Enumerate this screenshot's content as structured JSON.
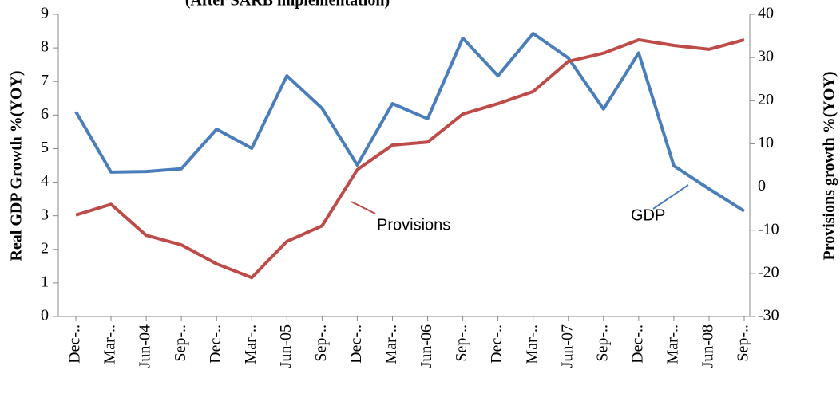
{
  "chart_data": {
    "type": "line",
    "title": "(After SARB implementation)",
    "y_label": "Real GDP Growth %(YOY)",
    "y2_label": "Provisions growth %(YOY)",
    "categories": [
      "Dec-..",
      "Mar-..",
      "Jun-04",
      "Sep-..",
      "Dec-..",
      "Mar-..",
      "Jun-05",
      "Sep-..",
      "Dec-..",
      "Mar-..",
      "Jun-06",
      "Sep-..",
      "Dec-..",
      "Mar-..",
      "Jun-07",
      "Sep-..",
      "Dec-..",
      "Mar-..",
      "Jun-08",
      "Sep-.."
    ],
    "series": [
      {
        "name": "GDP",
        "color": "#4a7ebb",
        "values": [
          6.1,
          4.3,
          4.32,
          4.4,
          5.58,
          5.01,
          7.17,
          6.2,
          4.51,
          6.34,
          5.89,
          8.29,
          7.17,
          8.43,
          7.7,
          6.18,
          7.85,
          4.49,
          3.8,
          3.14
        ]
      },
      {
        "name": "Provisions",
        "color": "#be4b48",
        "axis": "y2",
        "values": [
          -6.5,
          -4,
          -11.2,
          -13.4,
          -17.8,
          -21,
          -12.6,
          -9,
          4,
          9.7,
          10.4,
          16.9,
          19.3,
          22.1,
          29.1,
          31,
          34.1,
          32.8,
          31.9,
          34.1
        ]
      }
    ],
    "ylim": [
      0,
      9
    ],
    "yticks": [
      0,
      1,
      2,
      3,
      4,
      5,
      6,
      7,
      8,
      9
    ],
    "y2lim": [
      -30,
      40
    ],
    "y2ticks": [
      -30,
      -20,
      -10,
      0,
      10,
      20,
      30,
      40
    ],
    "grid": false
  }
}
